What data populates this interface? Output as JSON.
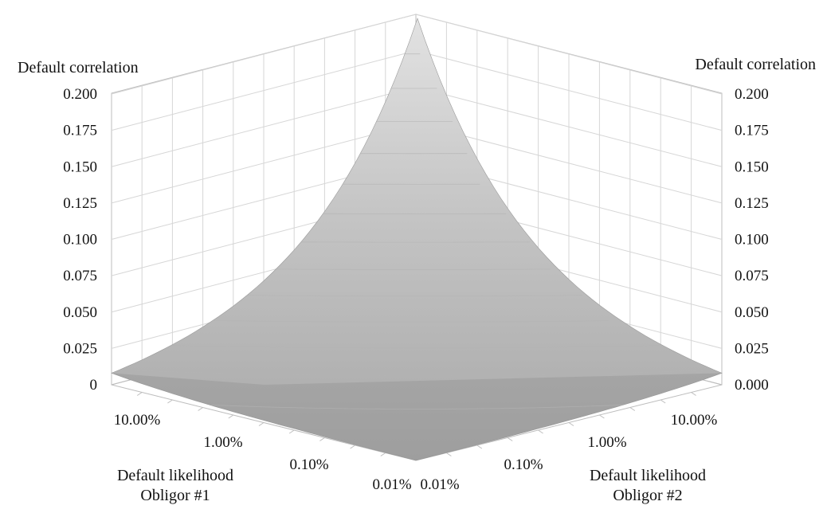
{
  "chart_data": {
    "type": "surface",
    "title": "",
    "z_axis": {
      "label_left": "Default correlation",
      "label_right": "Default correlation",
      "ticks_left": [
        "0.200",
        "0.175",
        "0.150",
        "0.125",
        "0.100",
        "0.075",
        "0.050",
        "0.025",
        "0"
      ],
      "ticks_right": [
        "0.200",
        "0.175",
        "0.150",
        "0.125",
        "0.100",
        "0.075",
        "0.050",
        "0.025",
        "0.000"
      ],
      "range": [
        0,
        0.2
      ]
    },
    "x_axis": {
      "label_line1": "Default likelihood",
      "label_line2": "Obligor #1",
      "ticks": [
        "10.00%",
        "1.00%",
        "0.10%",
        "0.01%"
      ],
      "values": [
        0.1,
        0.01,
        0.001,
        0.0001
      ],
      "scale": "log"
    },
    "y_axis": {
      "label_line1": "Default likelihood",
      "label_line2": "Obligor #2",
      "ticks": [
        "0.01%",
        "0.10%",
        "1.00%",
        "10.00%"
      ],
      "values": [
        0.0001,
        0.001,
        0.01,
        0.1
      ],
      "scale": "log"
    },
    "surface_corners": [
      {
        "obligor1": 0.0001,
        "obligor2": 0.0001,
        "correlation": 0.0
      },
      {
        "obligor1": 0.1,
        "obligor2": 0.0001,
        "correlation": 0.008
      },
      {
        "obligor1": 0.0001,
        "obligor2": 0.1,
        "correlation": 0.008
      },
      {
        "obligor1": 0.1,
        "obligor2": 0.1,
        "correlation": 0.2
      }
    ],
    "grid": true
  }
}
